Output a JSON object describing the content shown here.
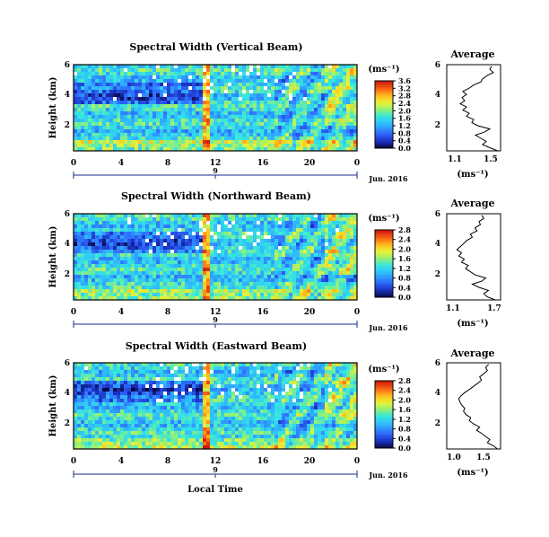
{
  "figure": {
    "date_label": "Jun. 2016",
    "local_time_label": "Local Time",
    "axis_ylabel": "Height (km)",
    "day_marker": "9",
    "units_label": "(ms⁻¹)",
    "average_title": "Average"
  },
  "chart_data": [
    {
      "type": "heatmap",
      "title": "Spectral Width (Vertical Beam)",
      "ylabel": "Height (km)",
      "xlim": [
        0,
        24
      ],
      "xticks": [
        "0",
        "4",
        "8",
        "12",
        "16",
        "20",
        "0"
      ],
      "ylim": [
        0.5,
        6
      ],
      "yticks": [
        "2",
        "4",
        "6"
      ],
      "colorbar": {
        "label": "(ms⁻¹)",
        "range": [
          0.0,
          3.6
        ],
        "ticks": [
          "0.0",
          "0.4",
          "0.8",
          "1.2",
          "1.6",
          "2.0",
          "2.4",
          "2.8",
          "3.2",
          "3.6"
        ]
      },
      "profile": {
        "title": "Average",
        "xlabel": "(ms⁻¹)",
        "xlim": [
          1.0,
          1.6
        ],
        "xticks": [
          "1.1",
          "1.5"
        ],
        "yticks": [
          "2",
          "4",
          "6"
        ],
        "height_km": [
          0.5,
          0.7,
          0.9,
          1.1,
          1.3,
          1.5,
          1.7,
          1.9,
          2.1,
          2.3,
          2.5,
          2.7,
          2.9,
          3.1,
          3.3,
          3.5,
          3.7,
          3.9,
          4.1,
          4.3,
          4.5,
          4.7,
          4.9,
          5.1,
          5.3,
          5.5,
          5.7,
          5.9
        ],
        "width_ms": [
          1.57,
          1.48,
          1.4,
          1.44,
          1.38,
          1.32,
          1.42,
          1.48,
          1.35,
          1.28,
          1.3,
          1.22,
          1.25,
          1.18,
          1.22,
          1.15,
          1.2,
          1.17,
          1.22,
          1.18,
          1.25,
          1.3,
          1.38,
          1.4,
          1.45,
          1.52,
          1.48,
          1.5
        ]
      }
    },
    {
      "type": "heatmap",
      "title": "Spectral Width (Northward Beam)",
      "ylabel": "Height (km)",
      "xlim": [
        0,
        24
      ],
      "xticks": [
        "0",
        "4",
        "8",
        "12",
        "16",
        "20",
        "0"
      ],
      "ylim": [
        0.5,
        6
      ],
      "yticks": [
        "2",
        "4",
        "6"
      ],
      "colorbar": {
        "label": "(ms⁻¹)",
        "range": [
          0.0,
          2.8
        ],
        "ticks": [
          "0.0",
          "0.4",
          "0.8",
          "1.2",
          "1.6",
          "2.0",
          "2.4",
          "2.8"
        ]
      },
      "profile": {
        "title": "Average",
        "xlabel": "(ms⁻¹)",
        "xlim": [
          1.0,
          1.8
        ],
        "xticks": [
          "1.1",
          "1.7"
        ],
        "yticks": [
          "2",
          "4",
          "6"
        ],
        "height_km": [
          0.5,
          0.7,
          0.9,
          1.1,
          1.3,
          1.5,
          1.7,
          1.9,
          2.1,
          2.3,
          2.5,
          2.7,
          2.9,
          3.1,
          3.3,
          3.5,
          3.7,
          3.9,
          4.1,
          4.3,
          4.5,
          4.7,
          4.9,
          5.1,
          5.3,
          5.5,
          5.7,
          5.9
        ],
        "width_ms": [
          1.72,
          1.6,
          1.55,
          1.62,
          1.48,
          1.38,
          1.52,
          1.58,
          1.42,
          1.35,
          1.28,
          1.32,
          1.22,
          1.26,
          1.18,
          1.22,
          1.15,
          1.2,
          1.25,
          1.3,
          1.38,
          1.35,
          1.45,
          1.42,
          1.5,
          1.48,
          1.55,
          1.52
        ]
      }
    },
    {
      "type": "heatmap",
      "title": "Spectral Width (Eastward Beam)",
      "ylabel": "Height (km)",
      "xlim": [
        0,
        24
      ],
      "xticks": [
        "0",
        "4",
        "8",
        "12",
        "16",
        "20",
        "0"
      ],
      "ylim": [
        0.5,
        6
      ],
      "yticks": [
        "2",
        "4",
        "6"
      ],
      "colorbar": {
        "label": "(ms⁻¹)",
        "range": [
          0.0,
          2.8
        ],
        "ticks": [
          "0.0",
          "0.4",
          "0.8",
          "1.2",
          "1.6",
          "2.0",
          "2.4",
          "2.8"
        ]
      },
      "profile": {
        "title": "Average",
        "xlabel": "(ms⁻¹)",
        "xlim": [
          0.9,
          1.8
        ],
        "xticks": [
          "1.0",
          "1.5"
        ],
        "yticks": [
          "2",
          "4",
          "6"
        ],
        "height_km": [
          0.5,
          0.7,
          0.9,
          1.1,
          1.3,
          1.5,
          1.7,
          1.9,
          2.1,
          2.3,
          2.5,
          2.7,
          2.9,
          3.1,
          3.3,
          3.5,
          3.7,
          3.9,
          4.1,
          4.3,
          4.5,
          4.7,
          4.9,
          5.1,
          5.3,
          5.5,
          5.7,
          5.9
        ],
        "width_ms": [
          1.75,
          1.68,
          1.58,
          1.62,
          1.55,
          1.48,
          1.4,
          1.45,
          1.35,
          1.28,
          1.3,
          1.22,
          1.18,
          1.2,
          1.15,
          1.12,
          1.1,
          1.14,
          1.2,
          1.28,
          1.35,
          1.42,
          1.48,
          1.45,
          1.52,
          1.58,
          1.55,
          1.6
        ]
      }
    }
  ]
}
